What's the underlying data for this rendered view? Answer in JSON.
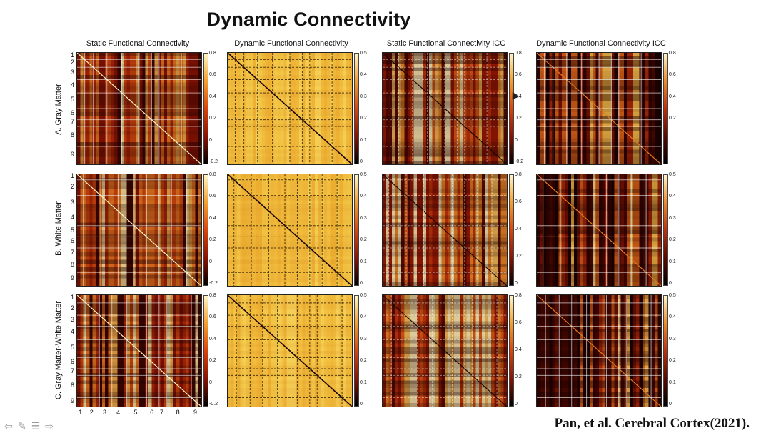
{
  "title": "Dynamic Connectivity",
  "columns": [
    "Static Functional Connectivity",
    "Dynamic Functional Connectivity",
    "Static Functional Connectivity ICC",
    "Dynamic Functional Connectivity ICC"
  ],
  "rows": [
    {
      "label": "A. Gray Matter",
      "regions": [
        "1",
        "2",
        "3",
        "4",
        "5",
        "6",
        "7",
        "8",
        "9"
      ]
    },
    {
      "label": "B. White Matter",
      "regions": [
        "1",
        "2",
        "3",
        "4",
        "5",
        "6",
        "7",
        "8",
        "9"
      ]
    },
    {
      "label": "C. Gray Matter-White Matter",
      "regions": [
        "1",
        "2",
        "3",
        "4",
        "5",
        "6",
        "7",
        "8",
        "9"
      ]
    }
  ],
  "bottom_axis": [
    "1",
    "2",
    "3",
    "4",
    "5",
    "6",
    "7",
    "8",
    "9"
  ],
  "colorbars": [
    [
      [
        "0.8",
        "0.6",
        "0.4",
        "0.2",
        "0",
        "-0.2"
      ],
      [
        "0.5",
        "0.4",
        "0.3",
        "0.2",
        "0.1",
        "0"
      ],
      [
        "0.8",
        "0.6",
        "0.4",
        "0.2",
        "0",
        "-0.2"
      ],
      [
        "0.8",
        "0.6",
        "0.4",
        "0.2"
      ]
    ],
    [
      [
        "0.8",
        "0.6",
        "0.4",
        "0.2",
        "0",
        "-0.2"
      ],
      [
        "0.5",
        "0.4",
        "0.3",
        "0.2",
        "0.1",
        "0"
      ],
      [
        "0.8",
        "0.6",
        "0.4",
        "0.2",
        "0"
      ],
      [
        "0.5",
        "0.4",
        "0.3",
        "0.2",
        "0.1",
        "0"
      ]
    ],
    [
      [
        "0.8",
        "0.6",
        "0.4",
        "0.2",
        "0",
        "-0.2"
      ],
      [
        "0.5",
        "0.4",
        "0.3",
        "0.2",
        "0.1",
        "0"
      ],
      [
        "0.8",
        "0.6",
        "0.4",
        "0.2",
        "0"
      ],
      [
        "0.5",
        "0.4",
        "0.3",
        "0.2",
        "0.1",
        "0"
      ]
    ]
  ],
  "citation": "Pan, et al. Cerebral Cortex(2021).",
  "nav_icons": [
    "back-arrow-icon",
    "pen-icon",
    "menu-icon",
    "forward-arrow-icon"
  ],
  "colors": {
    "heat_dark": "#2a0300",
    "heat_red": "#b41e05",
    "heat_orange": "#e8681a",
    "heat_yellow": "#f2c23a",
    "heat_light": "#fff6c8"
  }
}
